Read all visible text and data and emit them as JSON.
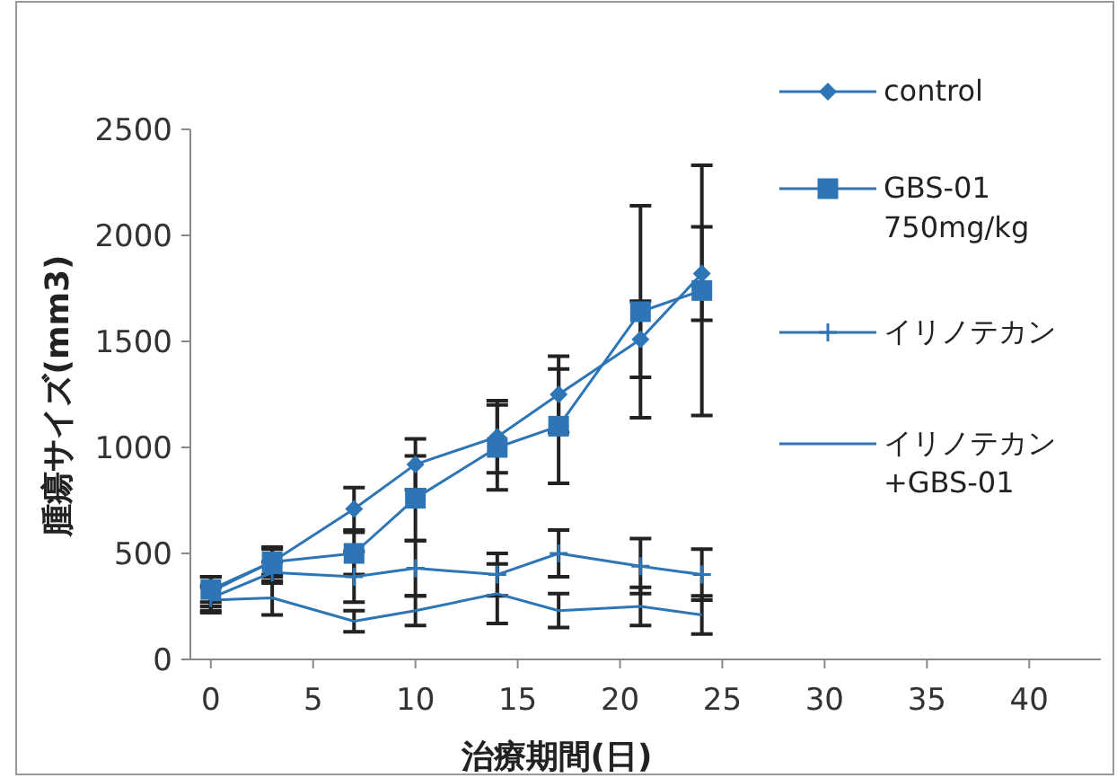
{
  "chart_data": {
    "type": "line",
    "xlabel": "治療期間(日)",
    "ylabel": "腫瘍サイズ(mm3)",
    "x": [
      0,
      3,
      7,
      10,
      14,
      17,
      21,
      24
    ],
    "series": [
      {
        "name": "control",
        "color": "#2e75b6",
        "marker": "diamond",
        "values": [
          320,
          460,
          710,
          920,
          1050,
          1250,
          1510,
          1820
        ],
        "errors": [
          70,
          70,
          100,
          120,
          170,
          180,
          180,
          220
        ]
      },
      {
        "name": "GBS-01 750mg/kg",
        "color": "#2e75b6",
        "marker": "square",
        "values": [
          330,
          460,
          500,
          760,
          1000,
          1100,
          1640,
          1740
        ],
        "errors": [
          60,
          60,
          100,
          200,
          200,
          270,
          500,
          590
        ]
      },
      {
        "name": "イリノテカン",
        "color": "#2e75b6",
        "marker": "cross",
        "values": [
          290,
          410,
          390,
          430,
          400,
          500,
          440,
          400
        ],
        "errors": [
          60,
          50,
          120,
          130,
          100,
          110,
          130,
          120
        ]
      },
      {
        "name": "イリノテカン +GBS-01",
        "color": "#2e75b6",
        "values": [
          280,
          290,
          180,
          230,
          310,
          230,
          250,
          210
        ],
        "errors": [
          60,
          80,
          50,
          70,
          140,
          80,
          90,
          90
        ]
      }
    ],
    "xlim": [
      -1,
      43.5
    ],
    "xticks": [
      0,
      5,
      10,
      15,
      20,
      25,
      30,
      35,
      40
    ],
    "ylim": [
      0,
      2500
    ],
    "yticks": [
      0,
      500,
      1000,
      1500,
      2000,
      2500
    ],
    "legend": "right",
    "line_style": "solid"
  }
}
